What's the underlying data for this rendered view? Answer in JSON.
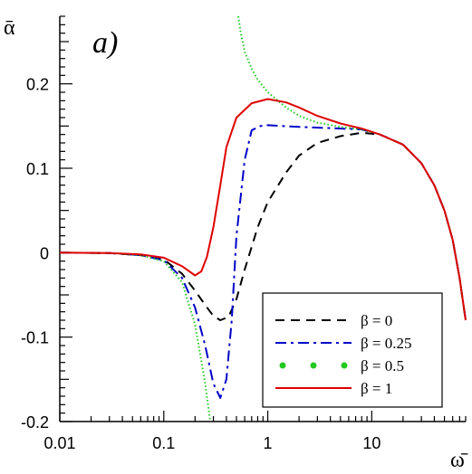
{
  "chart_data": {
    "type": "line",
    "panel_label": "a)",
    "ylabel": "ᾱ",
    "xlabel": "ω̄",
    "xscale": "log",
    "xlim": [
      0.01,
      80
    ],
    "ylim": [
      -0.2,
      0.28
    ],
    "x_ticks": [
      {
        "value": 0.01,
        "label": "0.01"
      },
      {
        "value": 0.1,
        "label": "0.1"
      },
      {
        "value": 1,
        "label": "1"
      },
      {
        "value": 10,
        "label": "10"
      }
    ],
    "y_ticks": [
      {
        "value": -0.2,
        "label": "-0.2"
      },
      {
        "value": -0.1,
        "label": "-0.1"
      },
      {
        "value": 0,
        "label": "0"
      },
      {
        "value": 0.1,
        "label": "0.1"
      },
      {
        "value": 0.2,
        "label": "0.2"
      }
    ],
    "grid": false,
    "legend_position": "bottom-right",
    "series": [
      {
        "name": "β = 0",
        "color": "#000000",
        "dash": "10,7",
        "width": 2,
        "points": [
          [
            0.01,
            0
          ],
          [
            0.03,
            -0.0005
          ],
          [
            0.06,
            -0.003
          ],
          [
            0.1,
            -0.008
          ],
          [
            0.15,
            -0.025
          ],
          [
            0.2,
            -0.045
          ],
          [
            0.25,
            -0.062
          ],
          [
            0.3,
            -0.075
          ],
          [
            0.35,
            -0.08
          ],
          [
            0.42,
            -0.076
          ],
          [
            0.5,
            -0.055
          ],
          [
            0.6,
            -0.02
          ],
          [
            0.8,
            0.03
          ],
          [
            1.0,
            0.06
          ],
          [
            1.5,
            0.095
          ],
          [
            2,
            0.115
          ],
          [
            3,
            0.13
          ],
          [
            5,
            0.138
          ],
          [
            8,
            0.142
          ],
          [
            12,
            0.14
          ],
          [
            20,
            0.128
          ],
          [
            30,
            0.106
          ],
          [
            40,
            0.08
          ],
          [
            50,
            0.05
          ],
          [
            60,
            0.015
          ],
          [
            70,
            -0.03
          ],
          [
            80,
            -0.08
          ]
        ]
      },
      {
        "name": "β = 0.25",
        "color": "#0000c8",
        "dash": "12,5,3,5",
        "width": 2,
        "points": [
          [
            0.01,
            0
          ],
          [
            0.03,
            -0.0005
          ],
          [
            0.06,
            -0.003
          ],
          [
            0.1,
            -0.009
          ],
          [
            0.15,
            -0.03
          ],
          [
            0.2,
            -0.065
          ],
          [
            0.25,
            -0.11
          ],
          [
            0.3,
            -0.155
          ],
          [
            0.35,
            -0.172
          ],
          [
            0.4,
            -0.15
          ],
          [
            0.45,
            -0.08
          ],
          [
            0.5,
            0.02
          ],
          [
            0.6,
            0.11
          ],
          [
            0.7,
            0.145
          ],
          [
            0.85,
            0.15
          ],
          [
            1.0,
            0.151
          ],
          [
            2,
            0.149
          ],
          [
            5,
            0.147
          ],
          [
            8,
            0.146
          ],
          [
            12,
            0.14
          ],
          [
            20,
            0.128
          ],
          [
            30,
            0.106
          ],
          [
            40,
            0.08
          ],
          [
            50,
            0.05
          ],
          [
            60,
            0.015
          ],
          [
            70,
            -0.03
          ],
          [
            80,
            -0.08
          ]
        ]
      },
      {
        "name": "β = 0.5",
        "color": "#22c822",
        "dash": "1.5,2.5",
        "width": 2,
        "points": [
          [
            0.01,
            0
          ],
          [
            0.03,
            -0.0005
          ],
          [
            0.06,
            -0.003
          ],
          [
            0.1,
            -0.01
          ],
          [
            0.15,
            -0.035
          ],
          [
            0.2,
            -0.085
          ],
          [
            0.25,
            -0.155
          ],
          [
            0.28,
            -0.2
          ]
        ],
        "branch2": [
          [
            0.52,
            0.28
          ],
          [
            0.55,
            0.26
          ],
          [
            0.6,
            0.238
          ],
          [
            0.7,
            0.218
          ],
          [
            0.8,
            0.205
          ],
          [
            1.0,
            0.19
          ],
          [
            1.5,
            0.172
          ],
          [
            2,
            0.162
          ],
          [
            3,
            0.154
          ],
          [
            5,
            0.149
          ],
          [
            8,
            0.146
          ],
          [
            12,
            0.14
          ],
          [
            20,
            0.128
          ],
          [
            30,
            0.106
          ],
          [
            40,
            0.08
          ],
          [
            50,
            0.05
          ],
          [
            60,
            0.015
          ],
          [
            70,
            -0.03
          ],
          [
            80,
            -0.08
          ]
        ]
      },
      {
        "name": "β = 1",
        "color": "#e00000",
        "dash": "",
        "width": 2,
        "points": [
          [
            0.01,
            0
          ],
          [
            0.03,
            -0.0005
          ],
          [
            0.06,
            -0.002
          ],
          [
            0.1,
            -0.006
          ],
          [
            0.15,
            -0.016
          ],
          [
            0.2,
            -0.027
          ],
          [
            0.23,
            -0.022
          ],
          [
            0.26,
            -0.005
          ],
          [
            0.3,
            0.03
          ],
          [
            0.35,
            0.08
          ],
          [
            0.4,
            0.125
          ],
          [
            0.5,
            0.16
          ],
          [
            0.7,
            0.177
          ],
          [
            1.0,
            0.182
          ],
          [
            1.5,
            0.178
          ],
          [
            2,
            0.172
          ],
          [
            3,
            0.162
          ],
          [
            5,
            0.153
          ],
          [
            8,
            0.147
          ],
          [
            12,
            0.14
          ],
          [
            20,
            0.128
          ],
          [
            30,
            0.106
          ],
          [
            40,
            0.08
          ],
          [
            50,
            0.05
          ],
          [
            60,
            0.015
          ],
          [
            70,
            -0.03
          ],
          [
            80,
            -0.08
          ]
        ]
      }
    ]
  }
}
